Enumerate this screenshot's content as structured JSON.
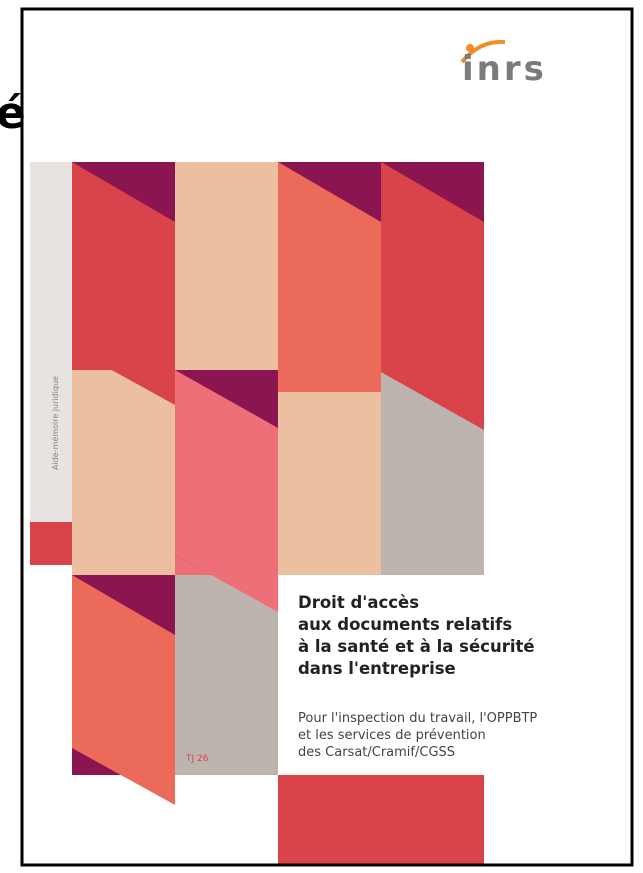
{
  "side_fragment": "é",
  "cover": {
    "logo": "inrs",
    "series_label": "Aide-mémoire juridique",
    "title_lines": [
      "Droit d'accès",
      "aux documents relatifs",
      "à la santé et à la sécurité",
      "dans l'entreprise"
    ],
    "subtitle_lines": [
      "Pour l'inspection du travail, l'OPPBTP",
      "et les services de prévention",
      "des Carsat/Cramif/CGSS"
    ],
    "reference": "TJ 26"
  }
}
